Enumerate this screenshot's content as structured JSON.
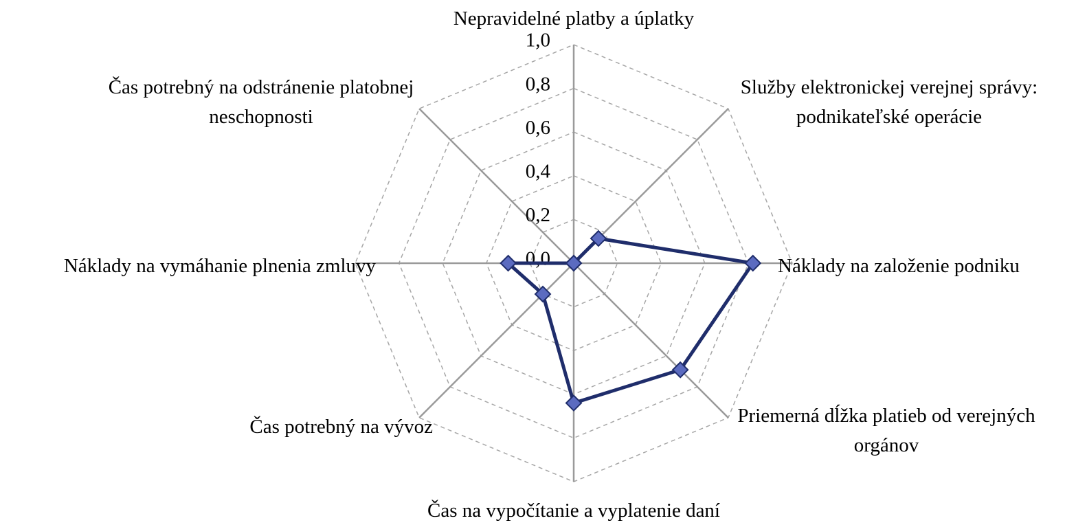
{
  "chart_data": {
    "type": "radar",
    "categories": [
      "Nepravidelné platby a úplatky",
      "Služby elektronickej verejnej správy: podnikateľské operácie",
      "Náklady na založenie podniku",
      "Priemerná dĺžka platieb od verejných orgánov",
      "Čas na vypočítanie a vyplatenie daní",
      "Čas potrebný na vývoz",
      "Náklady na vymáhanie plnenia zmluvy",
      "Čas potrebný na odstránenie platobnej neschopnosti"
    ],
    "series": [
      {
        "color": "#1f2d6b",
        "marker_color": "#5b6bc0",
        "values": [
          0.0,
          0.16,
          0.82,
          0.69,
          0.64,
          0.2,
          0.3,
          0.0
        ]
      }
    ],
    "rlim": [
      0,
      1
    ],
    "rticks": [
      {
        "value": 0,
        "label": "0,0"
      },
      {
        "value": 0.2,
        "label": "0,2"
      },
      {
        "value": 0.4,
        "label": "0,4"
      },
      {
        "value": 0.6,
        "label": "0,6"
      },
      {
        "value": 0.8,
        "label": "0,8"
      },
      {
        "value": 1,
        "label": "1,0"
      }
    ],
    "grid": true
  }
}
